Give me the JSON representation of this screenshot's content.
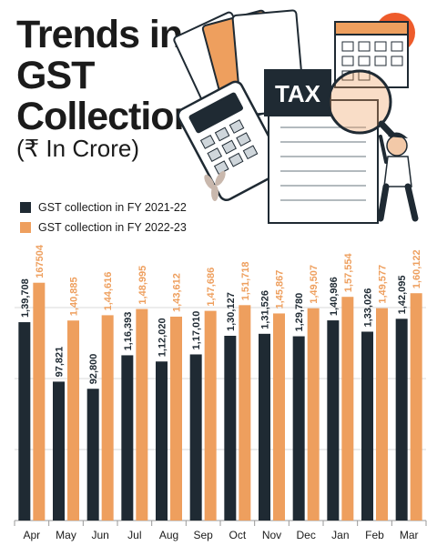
{
  "header": {
    "title_lines": [
      "Trends in",
      "GST",
      "Collection"
    ],
    "subtitle": "(₹ In Crore)",
    "illustration_label": "TAX"
  },
  "colors": {
    "fy2122": "#1f2a33",
    "fy2223": "#ee9f5e",
    "grid": "#d9d9d9",
    "logo": "#ee5b2b"
  },
  "legend": [
    {
      "label": "GST collection in FY 2021-22",
      "color": "#1f2a33"
    },
    {
      "label": "GST collection in FY 2022-23",
      "color": "#ee9f5e"
    }
  ],
  "chart_data": {
    "type": "bar",
    "title": "Trends in GST Collection",
    "ylabel": "(₹ In Crore)",
    "categories": [
      "Apr",
      "May",
      "Jun",
      "Jul",
      "Aug",
      "Sep",
      "Oct",
      "Nov",
      "Dec",
      "Jan",
      "Feb",
      "Mar"
    ],
    "series": [
      {
        "name": "GST collection in FY 2021-22",
        "values": [
          139708,
          97821,
          92800,
          116393,
          112020,
          117010,
          130127,
          131526,
          129780,
          140986,
          133026,
          142095
        ],
        "labels": [
          "1,39,708",
          "97,821",
          "92,800",
          "1,16,393",
          "1,12,020",
          "1,17,010",
          "1,30,127",
          "1,31,526",
          "1,29,780",
          "1,40,986",
          "1,33,026",
          "1,42,095"
        ]
      },
      {
        "name": "GST collection in FY 2022-23",
        "values": [
          167504,
          140885,
          144616,
          148995,
          143612,
          147686,
          151718,
          145867,
          149507,
          157554,
          149577,
          160122
        ],
        "labels": [
          "167504",
          "1,40,885",
          "1,44,616",
          "1,48,995",
          "1,43,612",
          "1,47,686",
          "1,51,718",
          "1,45,867",
          "1,49,507",
          "1,57,554",
          "1,49,577",
          "1,60,122"
        ]
      }
    ],
    "ylim": [
      0,
      200000
    ],
    "grid": true,
    "legend_position": "top-left"
  }
}
